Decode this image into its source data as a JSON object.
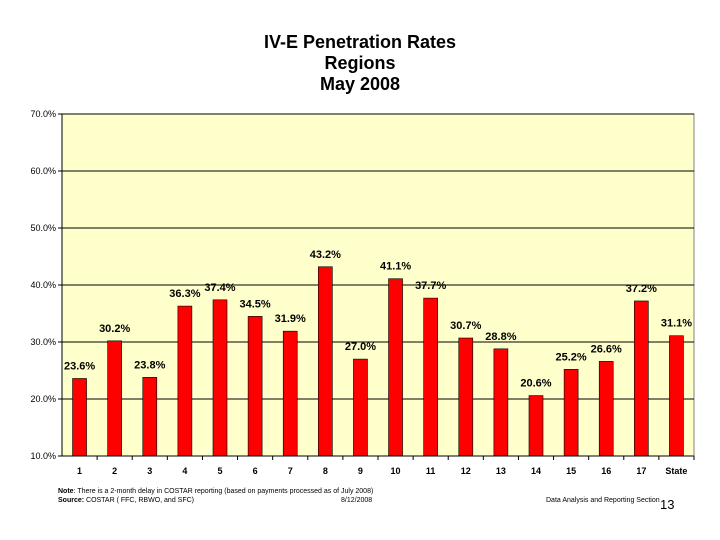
{
  "chart_data": {
    "type": "bar",
    "title_lines": [
      "IV-E Penetration Rates",
      "Regions",
      "May 2008"
    ],
    "categories": [
      "1",
      "2",
      "3",
      "4",
      "5",
      "6",
      "7",
      "8",
      "9",
      "10",
      "11",
      "12",
      "13",
      "14",
      "15",
      "16",
      "17",
      "State"
    ],
    "values": [
      23.6,
      30.2,
      23.8,
      36.3,
      37.4,
      34.5,
      31.9,
      43.2,
      27.0,
      41.1,
      37.7,
      30.7,
      28.8,
      20.6,
      25.2,
      26.6,
      37.2,
      31.1
    ],
    "value_labels": [
      "23.6%",
      "30.2%",
      "23.8%",
      "36.3%",
      "37.4%",
      "34.5%",
      "31.9%",
      "43.2%",
      "27.0%",
      "41.1%",
      "37.7%",
      "30.7%",
      "28.8%",
      "20.6%",
      "25.2%",
      "26.6%",
      "37.2%",
      "31.1%"
    ],
    "yticks": [
      10,
      20,
      30,
      40,
      50,
      60,
      70
    ],
    "ytick_labels": [
      "10.0%",
      "20.0%",
      "30.0%",
      "40.0%",
      "50.0%",
      "60.0%",
      "70.0%"
    ],
    "ylim": [
      10,
      70
    ],
    "xlabel": "",
    "ylabel": "",
    "grid": true,
    "legend": "none",
    "colors": {
      "bar": "#ff0000",
      "bar_border": "#000000",
      "plot_background": "#ffffcc",
      "gridline": "#000000"
    }
  },
  "footer": {
    "note_label": "Note",
    "note_text": ": There is a 2-month delay in COSTAR reporting (based on payments processed as of July 2008)",
    "source_label": "Source:",
    "source_text": " COSTAR ( FFC, RBWO, and SFC)",
    "date": "8/12/2008",
    "section": "Data Analysis and Reporting Section",
    "page_number": "13"
  }
}
